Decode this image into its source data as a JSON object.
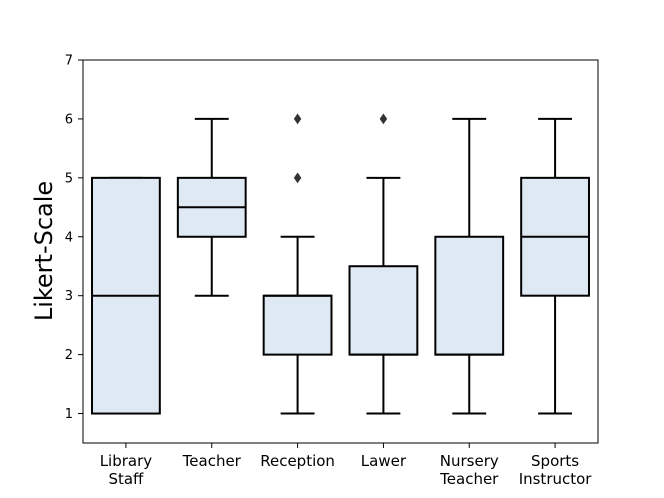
{
  "chart_data": {
    "type": "box",
    "ylabel": "Likert-Scale",
    "xlabel": "",
    "ylim": [
      0.5,
      7
    ],
    "yticks": [
      1,
      2,
      3,
      4,
      5,
      6,
      7
    ],
    "grid": false,
    "box_fill": "#dfe9f3",
    "line_color": "#000000",
    "categories": [
      {
        "label": [
          "Library",
          "Staff"
        ],
        "whisker_low": 1,
        "q1": 1,
        "median": 3,
        "q3": 5,
        "whisker_high": 5,
        "outliers": []
      },
      {
        "label": [
          "Teacher"
        ],
        "whisker_low": 3,
        "q1": 4,
        "median": 4.5,
        "q3": 5,
        "whisker_high": 6,
        "outliers": []
      },
      {
        "label": [
          "Reception"
        ],
        "whisker_low": 1,
        "q1": 2,
        "median": 3,
        "q3": 3,
        "whisker_high": 4,
        "outliers": [
          5,
          6
        ]
      },
      {
        "label": [
          "Lawer"
        ],
        "whisker_low": 1,
        "q1": 2,
        "median": 2,
        "q3": 3.5,
        "whisker_high": 5,
        "outliers": [
          6
        ]
      },
      {
        "label": [
          "Nursery",
          "Teacher"
        ],
        "whisker_low": 1,
        "q1": 2,
        "median": 2,
        "q3": 4,
        "whisker_high": 6,
        "outliers": []
      },
      {
        "label": [
          "Sports",
          "Instructor"
        ],
        "whisker_low": 1,
        "q1": 3,
        "median": 4,
        "q3": 5,
        "whisker_high": 6,
        "outliers": []
      }
    ]
  }
}
